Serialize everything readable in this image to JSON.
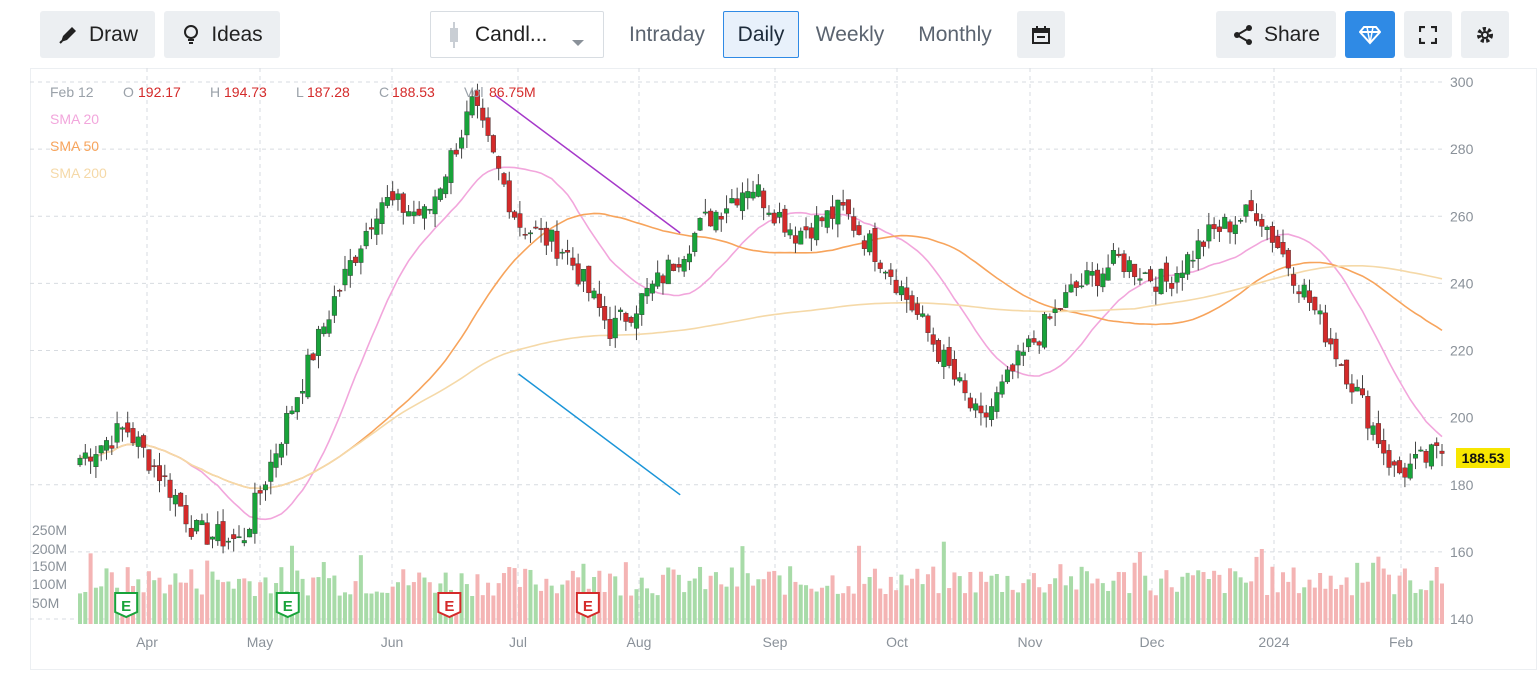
{
  "toolbar": {
    "draw_label": "Draw",
    "ideas_label": "Ideas",
    "chart_type_label": "Candl...",
    "periods": [
      "Intraday",
      "Daily",
      "Weekly",
      "Monthly"
    ],
    "active_period": "Daily",
    "share_label": "Share",
    "accent_color": "#2f8ae5"
  },
  "chart_data": {
    "type": "candlestick",
    "ohlc_header": {
      "date": "Feb 12",
      "o_label": "O",
      "o": "192.17",
      "h_label": "H",
      "h": "194.73",
      "l_label": "L",
      "l": "187.28",
      "c_label": "C",
      "c": "188.53",
      "vol_label": "Vol",
      "vol": "86.75M"
    },
    "legend": [
      {
        "name": "SMA 20",
        "color": "#f2a6dc"
      },
      {
        "name": "SMA 50",
        "color": "#f7a45c"
      },
      {
        "name": "SMA 200",
        "color": "#f5d9a8"
      }
    ],
    "last_price": "188.53",
    "y_ticks": [
      300,
      280,
      260,
      240,
      220,
      200,
      180,
      160,
      140
    ],
    "ylim": [
      140,
      300
    ],
    "volume_ticks": [
      "250M",
      "200M",
      "150M",
      "100M",
      "50M"
    ],
    "x_labels": [
      "Apr",
      "May",
      "Jun",
      "Jul",
      "Aug",
      "Sep",
      "Oct",
      "Nov",
      "Dec",
      "2024",
      "Feb"
    ],
    "earnings_markers": [
      {
        "label": "E",
        "type": "positive",
        "x_index": 2
      },
      {
        "label": "E",
        "type": "positive",
        "x_index": 9
      },
      {
        "label": "E",
        "type": "negative",
        "x_index": 16
      },
      {
        "label": "E",
        "type": "negative",
        "x_index": 22
      }
    ],
    "up_color": "#18a33a",
    "down_color": "#d42a2a",
    "trendlines": [
      {
        "name": "upper",
        "color": "#a538c9",
        "from": [
          18,
          296
        ],
        "to": [
          26,
          255
        ]
      },
      {
        "name": "lower",
        "color": "#1b95d8",
        "from": [
          19,
          213
        ],
        "to": [
          26,
          177
        ]
      }
    ],
    "key_points": [
      {
        "t": 0,
        "price": 188
      },
      {
        "t": 2,
        "price": 197
      },
      {
        "t": 4,
        "price": 178
      },
      {
        "t": 5,
        "price": 166
      },
      {
        "t": 7,
        "price": 163
      },
      {
        "t": 9,
        "price": 200
      },
      {
        "t": 11,
        "price": 235
      },
      {
        "t": 13,
        "price": 265
      },
      {
        "t": 15,
        "price": 260
      },
      {
        "t": 17,
        "price": 293
      },
      {
        "t": 19,
        "price": 258
      },
      {
        "t": 21,
        "price": 250
      },
      {
        "t": 23,
        "price": 226
      },
      {
        "t": 25,
        "price": 240
      },
      {
        "t": 27,
        "price": 258
      },
      {
        "t": 29,
        "price": 270
      },
      {
        "t": 31,
        "price": 255
      },
      {
        "t": 33,
        "price": 262
      },
      {
        "t": 35,
        "price": 245
      },
      {
        "t": 37,
        "price": 222
      },
      {
        "t": 39,
        "price": 198
      },
      {
        "t": 41,
        "price": 220
      },
      {
        "t": 43,
        "price": 238
      },
      {
        "t": 45,
        "price": 247
      },
      {
        "t": 47,
        "price": 240
      },
      {
        "t": 49,
        "price": 255
      },
      {
        "t": 51,
        "price": 262
      },
      {
        "t": 53,
        "price": 238
      },
      {
        "t": 55,
        "price": 212
      },
      {
        "t": 57,
        "price": 183
      },
      {
        "t": 59,
        "price": 190
      }
    ]
  }
}
